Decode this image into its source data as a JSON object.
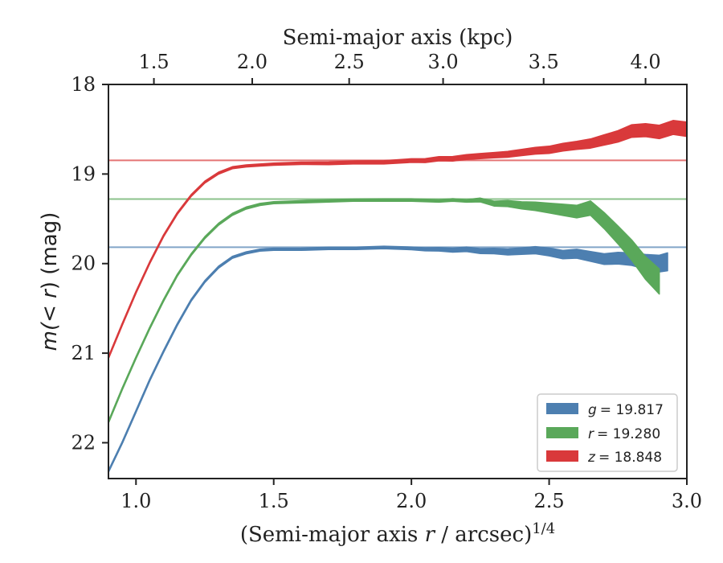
{
  "chart_data": {
    "type": "area",
    "xlabel_main": "(Semi-major axis ",
    "xlabel_italic": "r",
    "xlabel_rest": " / arcsec)",
    "xlabel_sup": "1/4",
    "ylabel_pre": "m(< ",
    "ylabel_r": "r",
    "ylabel_post": ") (mag)",
    "top_xlabel": "Semi-major axis (kpc)",
    "xlim": [
      0.9,
      3.0
    ],
    "ylim": [
      22.4,
      18.0
    ],
    "y_inverted": true,
    "x_ticks": [
      "1.0",
      "1.5",
      "2.0",
      "2.5",
      "3.0"
    ],
    "x_tick_values": [
      1.0,
      1.5,
      2.0,
      2.5,
      3.0
    ],
    "y_ticks": [
      "18",
      "19",
      "20",
      "21",
      "22"
    ],
    "y_tick_values": [
      18,
      19,
      20,
      21,
      22
    ],
    "top_x_ticks": [
      "1.5",
      "2.0",
      "2.5",
      "3.0",
      "3.5",
      "4.0"
    ],
    "top_x_tick_values": [
      1.5,
      2.0,
      2.5,
      3.0,
      3.5,
      4.0
    ],
    "top_x_tick_positions_bottom_units": [
      1.065,
      1.422,
      1.774,
      2.115,
      2.48,
      2.85
    ],
    "legend_position": "lower-right",
    "series": [
      {
        "name": "g",
        "label_value": "19.817",
        "color": "#4d7fb0",
        "asymptote": 19.817,
        "points": [
          [
            0.9,
            22.32
          ],
          [
            0.95,
            22.0
          ],
          [
            1.0,
            21.65
          ],
          [
            1.05,
            21.3
          ],
          [
            1.1,
            20.98
          ],
          [
            1.15,
            20.68
          ],
          [
            1.2,
            20.41
          ],
          [
            1.25,
            20.2
          ],
          [
            1.3,
            20.04
          ],
          [
            1.35,
            19.93
          ],
          [
            1.4,
            19.88
          ],
          [
            1.45,
            19.85
          ],
          [
            1.5,
            19.84
          ],
          [
            1.6,
            19.84
          ],
          [
            1.7,
            19.83
          ],
          [
            1.8,
            19.83
          ],
          [
            1.9,
            19.82
          ],
          [
            2.0,
            19.83
          ],
          [
            2.05,
            19.84
          ],
          [
            2.1,
            19.84
          ],
          [
            2.15,
            19.85
          ],
          [
            2.2,
            19.84
          ],
          [
            2.25,
            19.86
          ],
          [
            2.3,
            19.86
          ],
          [
            2.35,
            19.87
          ],
          [
            2.4,
            19.86
          ],
          [
            2.45,
            19.85
          ],
          [
            2.5,
            19.87
          ],
          [
            2.55,
            19.9
          ],
          [
            2.6,
            19.89
          ],
          [
            2.65,
            19.92
          ],
          [
            2.7,
            19.95
          ],
          [
            2.75,
            19.94
          ],
          [
            2.8,
            19.95
          ],
          [
            2.85,
            19.98
          ],
          [
            2.9,
            20.0
          ],
          [
            2.93,
            19.98
          ]
        ],
        "half_width": [
          [
            0.9,
            0.01
          ],
          [
            1.5,
            0.012
          ],
          [
            2.0,
            0.015
          ],
          [
            2.3,
            0.03
          ],
          [
            2.6,
            0.05
          ],
          [
            2.8,
            0.07
          ],
          [
            2.93,
            0.1
          ]
        ]
      },
      {
        "name": "r",
        "label_value": "19.280",
        "color": "#5aa85a",
        "asymptote": 19.28,
        "points": [
          [
            0.9,
            21.77
          ],
          [
            0.95,
            21.4
          ],
          [
            1.0,
            21.05
          ],
          [
            1.05,
            20.72
          ],
          [
            1.1,
            20.41
          ],
          [
            1.15,
            20.13
          ],
          [
            1.2,
            19.9
          ],
          [
            1.25,
            19.71
          ],
          [
            1.3,
            19.56
          ],
          [
            1.35,
            19.45
          ],
          [
            1.4,
            19.38
          ],
          [
            1.45,
            19.34
          ],
          [
            1.5,
            19.32
          ],
          [
            1.6,
            19.31
          ],
          [
            1.7,
            19.3
          ],
          [
            1.8,
            19.29
          ],
          [
            1.9,
            19.29
          ],
          [
            2.0,
            19.29
          ],
          [
            2.1,
            19.3
          ],
          [
            2.15,
            19.29
          ],
          [
            2.2,
            19.3
          ],
          [
            2.25,
            19.29
          ],
          [
            2.3,
            19.33
          ],
          [
            2.35,
            19.33
          ],
          [
            2.4,
            19.35
          ],
          [
            2.45,
            19.36
          ],
          [
            2.5,
            19.38
          ],
          [
            2.55,
            19.4
          ],
          [
            2.6,
            19.42
          ],
          [
            2.65,
            19.38
          ],
          [
            2.7,
            19.52
          ],
          [
            2.75,
            19.68
          ],
          [
            2.8,
            19.85
          ],
          [
            2.85,
            20.05
          ],
          [
            2.9,
            20.2
          ]
        ],
        "half_width": [
          [
            0.9,
            0.01
          ],
          [
            1.5,
            0.012
          ],
          [
            2.2,
            0.015
          ],
          [
            2.4,
            0.04
          ],
          [
            2.6,
            0.07
          ],
          [
            2.75,
            0.1
          ],
          [
            2.9,
            0.14
          ]
        ]
      },
      {
        "name": "z",
        "label_value": "18.848",
        "color": "#d9393b",
        "asymptote": 18.848,
        "points": [
          [
            0.9,
            21.05
          ],
          [
            0.95,
            20.68
          ],
          [
            1.0,
            20.32
          ],
          [
            1.05,
            19.99
          ],
          [
            1.1,
            19.69
          ],
          [
            1.15,
            19.44
          ],
          [
            1.2,
            19.24
          ],
          [
            1.25,
            19.09
          ],
          [
            1.3,
            18.99
          ],
          [
            1.35,
            18.93
          ],
          [
            1.4,
            18.91
          ],
          [
            1.45,
            18.9
          ],
          [
            1.5,
            18.89
          ],
          [
            1.6,
            18.88
          ],
          [
            1.7,
            18.88
          ],
          [
            1.8,
            18.87
          ],
          [
            1.9,
            18.87
          ],
          [
            2.0,
            18.85
          ],
          [
            2.05,
            18.85
          ],
          [
            2.1,
            18.83
          ],
          [
            2.15,
            18.83
          ],
          [
            2.2,
            18.81
          ],
          [
            2.25,
            18.8
          ],
          [
            2.3,
            18.79
          ],
          [
            2.35,
            18.78
          ],
          [
            2.4,
            18.76
          ],
          [
            2.45,
            18.74
          ],
          [
            2.5,
            18.73
          ],
          [
            2.55,
            18.7
          ],
          [
            2.6,
            18.68
          ],
          [
            2.65,
            18.66
          ],
          [
            2.7,
            18.62
          ],
          [
            2.75,
            18.58
          ],
          [
            2.8,
            18.52
          ],
          [
            2.85,
            18.51
          ],
          [
            2.9,
            18.53
          ],
          [
            2.95,
            18.48
          ],
          [
            3.0,
            18.5
          ]
        ],
        "half_width": [
          [
            0.9,
            0.01
          ],
          [
            1.5,
            0.012
          ],
          [
            2.0,
            0.02
          ],
          [
            2.3,
            0.03
          ],
          [
            2.6,
            0.045
          ],
          [
            2.8,
            0.07
          ],
          [
            3.0,
            0.08
          ]
        ]
      }
    ]
  },
  "legend": {
    "items": [
      {
        "symbol": "g",
        "value": "= 19.817"
      },
      {
        "symbol": "r",
        "value": "= 19.280"
      },
      {
        "symbol": "z",
        "value": "= 18.848"
      }
    ]
  }
}
